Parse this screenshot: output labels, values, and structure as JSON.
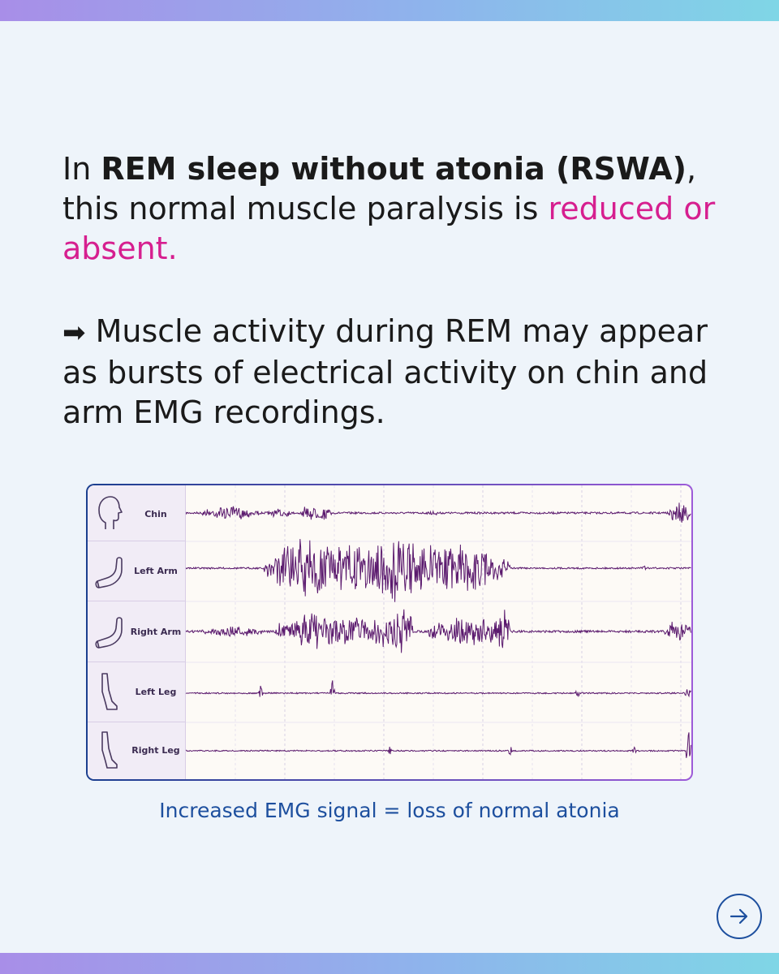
{
  "paragraph1": {
    "lead": "In ",
    "bold": "REM sleep without atonia (RSWA)",
    "middle": ", this normal muscle paralysis is ",
    "highlight": "reduced or absent."
  },
  "paragraph2": {
    "arrow": "➡",
    "text": " Muscle activity during REM may appear as bursts of electrical activity on chin and arm EMG recordings."
  },
  "emg": {
    "channels": [
      {
        "label": "Chin",
        "icon": "head-profile-icon"
      },
      {
        "label": "Left Arm",
        "icon": "arm-icon"
      },
      {
        "label": "Right Arm",
        "icon": "arm-icon"
      },
      {
        "label": "Left Leg",
        "icon": "leg-icon"
      },
      {
        "label": "Right Leg",
        "icon": "leg-icon"
      }
    ],
    "trace_color": "#5b1a6e"
  },
  "caption": "Increased EMG signal = loss of normal atonia",
  "next_button_icon": "arrow-right-icon"
}
